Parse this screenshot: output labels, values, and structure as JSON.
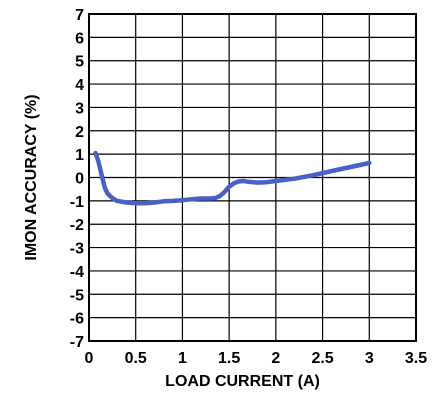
{
  "chart_data": {
    "type": "line",
    "title": "",
    "xlabel": "LOAD CURRENT (A)",
    "ylabel": "IMON ACCURACY (%)",
    "xlim": [
      0,
      3.5
    ],
    "ylim": [
      -7,
      7
    ],
    "x_ticks": [
      0,
      0.5,
      1,
      1.5,
      2,
      2.5,
      3,
      3.5
    ],
    "x_tick_labels": [
      "0",
      "0.5",
      "1",
      "1.5",
      "2",
      "2.5",
      "3",
      "3.5"
    ],
    "y_ticks": [
      7,
      6,
      5,
      4,
      3,
      2,
      1,
      0,
      -1,
      -2,
      -3,
      -4,
      -5,
      -6,
      -7
    ],
    "y_tick_labels": [
      "7",
      "6",
      "5",
      "4",
      "3",
      "2",
      "1",
      "0",
      "-1",
      "-2",
      "-3",
      "-4",
      "-5",
      "-6",
      "-7"
    ],
    "grid": true,
    "series": [
      {
        "color": "#4a5fc8",
        "x": [
          0.07,
          0.1,
          0.13,
          0.17,
          0.2,
          0.25,
          0.3,
          0.4,
          0.5,
          0.6,
          0.7,
          0.8,
          0.9,
          1.0,
          1.1,
          1.2,
          1.3,
          1.35,
          1.4,
          1.45,
          1.5,
          1.55,
          1.6,
          1.65,
          1.7,
          1.8,
          1.9,
          2.0,
          2.2,
          2.4,
          2.6,
          2.8,
          3.0
        ],
        "y": [
          1.05,
          0.7,
          0.2,
          -0.45,
          -0.7,
          -0.88,
          -1.0,
          -1.07,
          -1.1,
          -1.1,
          -1.07,
          -1.02,
          -1.0,
          -0.97,
          -0.93,
          -0.9,
          -0.9,
          -0.88,
          -0.8,
          -0.62,
          -0.4,
          -0.25,
          -0.17,
          -0.15,
          -0.18,
          -0.22,
          -0.2,
          -0.15,
          -0.05,
          0.1,
          0.28,
          0.45,
          0.62
        ]
      }
    ]
  }
}
